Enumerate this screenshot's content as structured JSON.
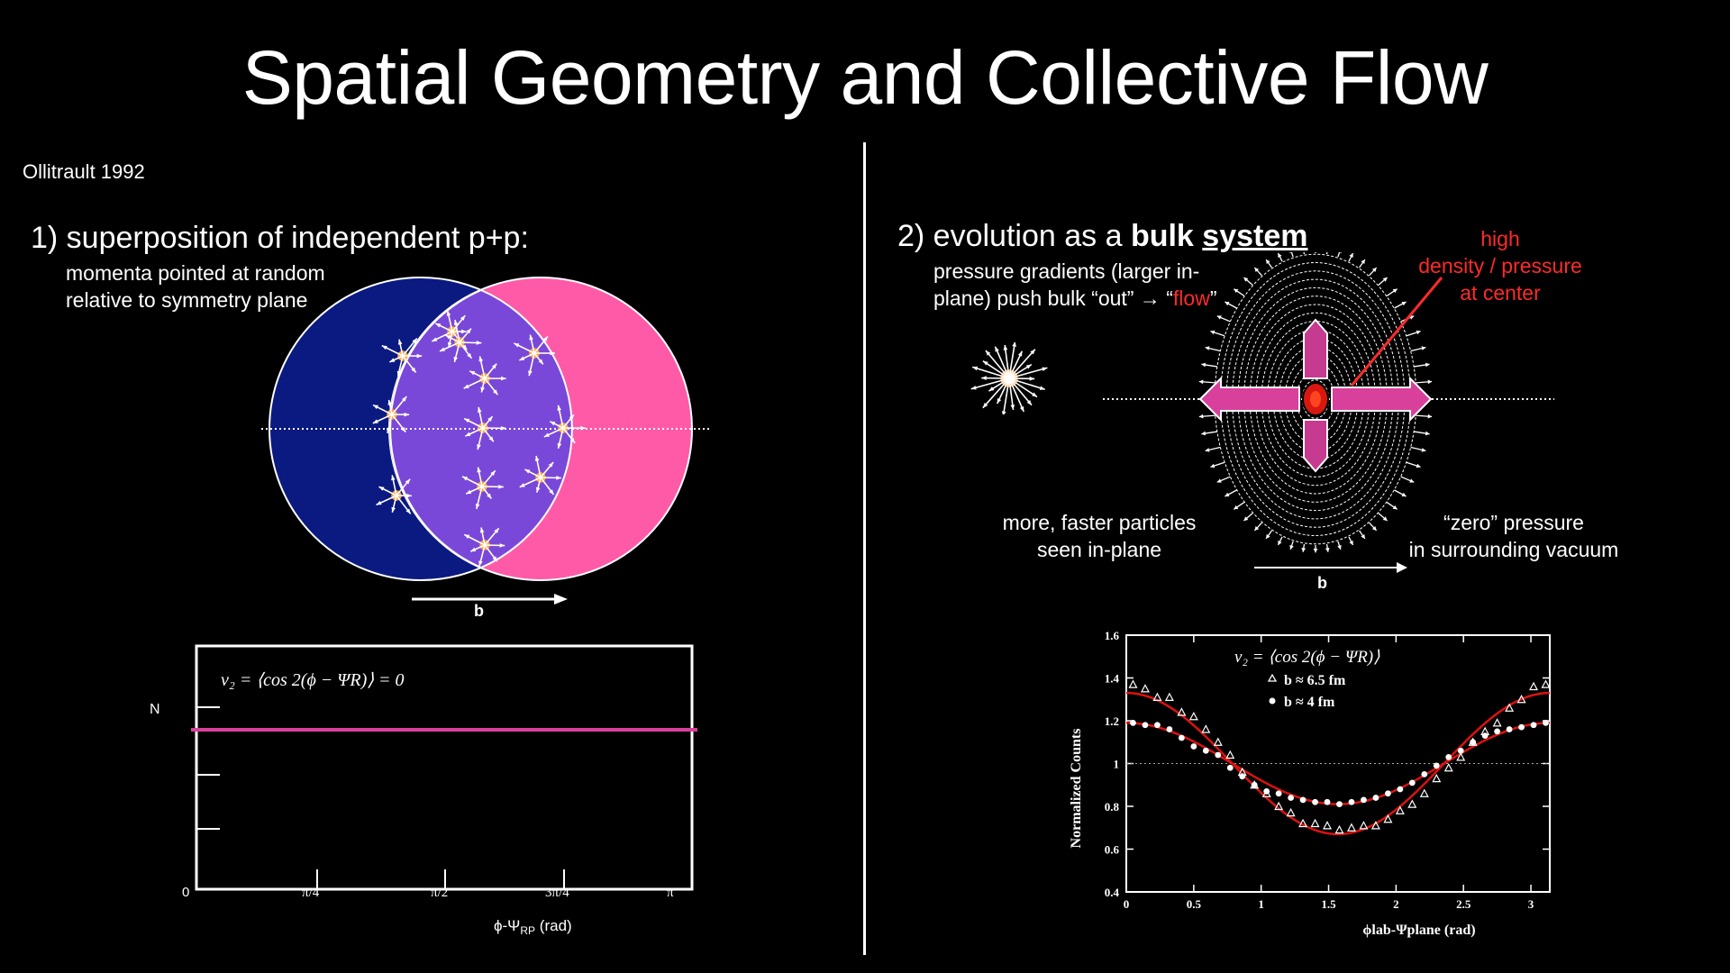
{
  "slide": {
    "title": "Spatial Geometry and Collective Flow",
    "citation": "Ollitrault 1992"
  },
  "left": {
    "heading": "1) superposition of independent p+p:",
    "note_line1": "momenta pointed at random",
    "note_line2": "relative to symmetry plane",
    "b_label": "b",
    "plot": {
      "ylabel": "N",
      "formula": "v₂ = ⟨cos 2(ϕ − ΨR)⟩ = 0",
      "tick_labels": [
        "0",
        "π/4",
        "π/2",
        "3π/4",
        "π"
      ],
      "xlabel_main": "ϕ-Ψ",
      "xlabel_sub": "RP",
      "xlabel_unit": " (rad)"
    }
  },
  "right": {
    "heading_plain": "2) evolution as a ",
    "heading_bold": "bulk",
    "heading_underlined": "system",
    "note_line1": "pressure gradients (larger in-",
    "note_line2_a": "plane) push bulk “out” → “",
    "note_line2_flow": "flow",
    "note_line2_b": "”",
    "high_line1": "high",
    "high_line2": "density / pressure",
    "high_line3": "at center",
    "inplane_line1": "more, faster particles",
    "inplane_line2": "seen in-plane",
    "zero_line1": "“zero” pressure",
    "zero_line2": "in surrounding vacuum",
    "b_label": "b",
    "chart_labels": {
      "formula": "v₂ = ⟨cos 2(ϕ − ΨR)⟩",
      "legend1": "b ≈ 6.5 fm",
      "legend2": "b ≈ 4 fm",
      "ylabel": "Normalized Counts",
      "xlabel": "ϕlab-Ψplane (rad)"
    }
  },
  "colors": {
    "left_circle": "#0a1a80",
    "right_circle": "#ff5aa8",
    "overlap": "#7a48d8",
    "accent_line": "#d8409c",
    "fit_curve": "#dd1111",
    "high_text": "#ff2a2a"
  },
  "chart_data": [
    {
      "type": "line",
      "title": "",
      "xlabel": "ϕ-ΨRP (rad)",
      "ylabel": "N",
      "categories": [
        "0",
        "π/4",
        "π/2",
        "3π/4",
        "π"
      ],
      "series": [
        {
          "values": [
            1,
            1,
            1,
            1,
            1
          ]
        }
      ],
      "annotation": "v2 = <cos 2(phi - PsiR)> = 0"
    },
    {
      "type": "scatter",
      "title": "",
      "xlabel": "ϕlab-Ψplane (rad)",
      "ylabel": "Normalized Counts",
      "xlim": [
        0,
        3.14
      ],
      "ylim": [
        0.4,
        1.6
      ],
      "x_ticks": [
        0,
        0.5,
        1,
        1.5,
        2,
        2.5,
        3
      ],
      "y_ticks": [
        0.4,
        0.6,
        0.8,
        1,
        1.2,
        1.4,
        1.6
      ],
      "reference_line": 1,
      "series": [
        {
          "name": "b ≈ 6.5 fm",
          "marker": "triangle",
          "amplitude": 0.33
        },
        {
          "name": "b ≈ 4 fm",
          "marker": "circle",
          "amplitude": 0.19
        }
      ],
      "x": [
        0.05,
        0.14,
        0.23,
        0.32,
        0.41,
        0.5,
        0.59,
        0.68,
        0.77,
        0.86,
        0.95,
        1.04,
        1.13,
        1.22,
        1.31,
        1.4,
        1.49,
        1.58,
        1.67,
        1.76,
        1.85,
        1.94,
        2.03,
        2.12,
        2.21,
        2.3,
        2.39,
        2.48,
        2.57,
        2.66,
        2.75,
        2.84,
        2.93,
        3.02,
        3.11
      ],
      "y_series": [
        [
          1.37,
          1.35,
          1.31,
          1.31,
          1.24,
          1.22,
          1.16,
          1.1,
          1.04,
          0.96,
          0.9,
          0.86,
          0.8,
          0.77,
          0.72,
          0.72,
          0.71,
          0.69,
          0.7,
          0.71,
          0.71,
          0.74,
          0.78,
          0.81,
          0.86,
          0.93,
          0.98,
          1.03,
          1.1,
          1.15,
          1.19,
          1.26,
          1.3,
          1.36,
          1.37
        ],
        [
          1.19,
          1.18,
          1.18,
          1.16,
          1.12,
          1.08,
          1.06,
          1.04,
          0.98,
          0.94,
          0.9,
          0.87,
          0.86,
          0.84,
          0.83,
          0.82,
          0.82,
          0.81,
          0.82,
          0.83,
          0.84,
          0.86,
          0.88,
          0.91,
          0.95,
          0.99,
          1.03,
          1.06,
          1.1,
          1.13,
          1.15,
          1.16,
          1.17,
          1.18,
          1.19
        ]
      ],
      "fit_curves": "red solid line through each series: 1 + 2 v2 cos(2x)"
    }
  ]
}
